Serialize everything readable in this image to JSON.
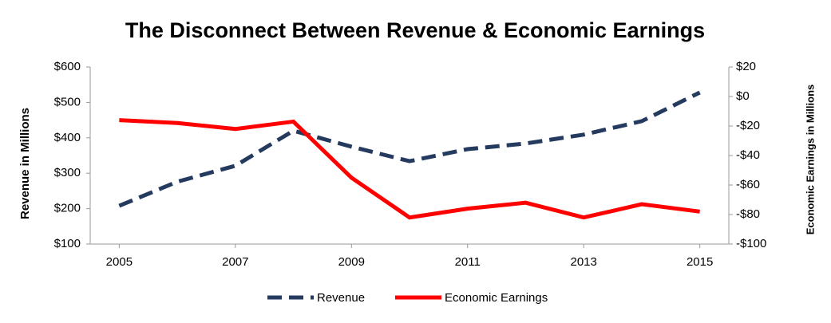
{
  "chart_data": {
    "type": "line",
    "title": "The Disconnect Between Revenue & Economic Earnings",
    "y_label": "Revenue in Millions",
    "y2_label": "Economic Earnings  in Millions",
    "x": [
      2005,
      2006,
      2007,
      2008,
      2009,
      2010,
      2011,
      2012,
      2013,
      2014,
      2015
    ],
    "xlim": [
      2004.5,
      2015.5
    ],
    "xticks": [
      2005,
      2007,
      2009,
      2011,
      2013,
      2015
    ],
    "ylim": [
      100,
      600
    ],
    "yticks": [
      {
        "value": 100,
        "label": "$100"
      },
      {
        "value": 200,
        "label": "$200"
      },
      {
        "value": 300,
        "label": "$300"
      },
      {
        "value": 400,
        "label": "$400"
      },
      {
        "value": 500,
        "label": "$500"
      },
      {
        "value": 600,
        "label": "$600"
      }
    ],
    "y2lim": [
      -100,
      20
    ],
    "y2ticks": [
      {
        "value": -100,
        "label": "-$100"
      },
      {
        "value": -80,
        "label": "-$80"
      },
      {
        "value": -60,
        "label": "-$60"
      },
      {
        "value": -40,
        "label": "-$40"
      },
      {
        "value": -20,
        "label": "-$20"
      },
      {
        "value": 0,
        "label": "$0"
      },
      {
        "value": 20,
        "label": "$20"
      }
    ],
    "legend": "bottom",
    "series": [
      {
        "name": "Revenue",
        "color": "#243a5e",
        "dashed": true,
        "values": [
          208,
          276,
          321,
          420,
          375,
          334,
          368,
          384,
          409,
          447,
          528
        ]
      },
      {
        "name": "Economic Earnings",
        "color": "#ff0000",
        "axis": "y2",
        "values": [
          -16,
          -18,
          -22,
          -17,
          -55,
          -82,
          -76,
          -72,
          -82,
          -73,
          -78
        ]
      }
    ]
  }
}
